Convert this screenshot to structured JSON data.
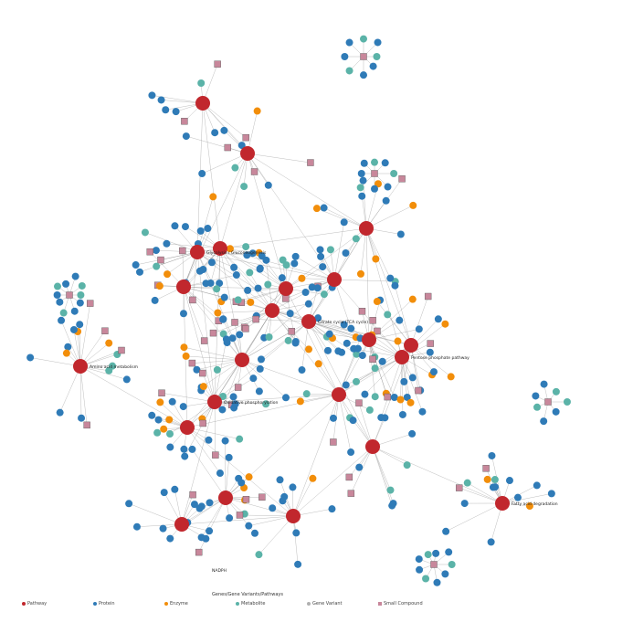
{
  "colors": {
    "pathway": "#c1272d",
    "protein": "#2f7bb7",
    "enzyme": "#f28e0a",
    "metabolite": "#5bb3a8",
    "gene_variant": "#b0b0b0",
    "small_compound": "#c8879b",
    "edge": "#8a8a8a"
  },
  "legend": {
    "title": "Genes/Gene Variants/Pathways",
    "items": [
      {
        "label": "Pathway",
        "kind": "pathway"
      },
      {
        "label": "Protein",
        "kind": "protein"
      },
      {
        "label": "Enzyme",
        "kind": "enzyme"
      },
      {
        "label": "Metabolite",
        "kind": "metabolite"
      },
      {
        "label": "Gene Variant",
        "kind": "gene_variant"
      },
      {
        "label": "Small Compound",
        "kind": "small_compound"
      }
    ]
  },
  "labels": {
    "hub_left": "Glycolysis / Gluconeogenesis",
    "hub_center": "Citrate cycle (TCA cycle)",
    "hub_right": "Pentose phosphate pathway",
    "hub_lower": "Oxidative phosphorylation",
    "hub_bottom_right": "Fatty acid degradation",
    "cluster_left": "Amino acid metabolism",
    "compound_bottom": "NADPH"
  },
  "seed": 42
}
